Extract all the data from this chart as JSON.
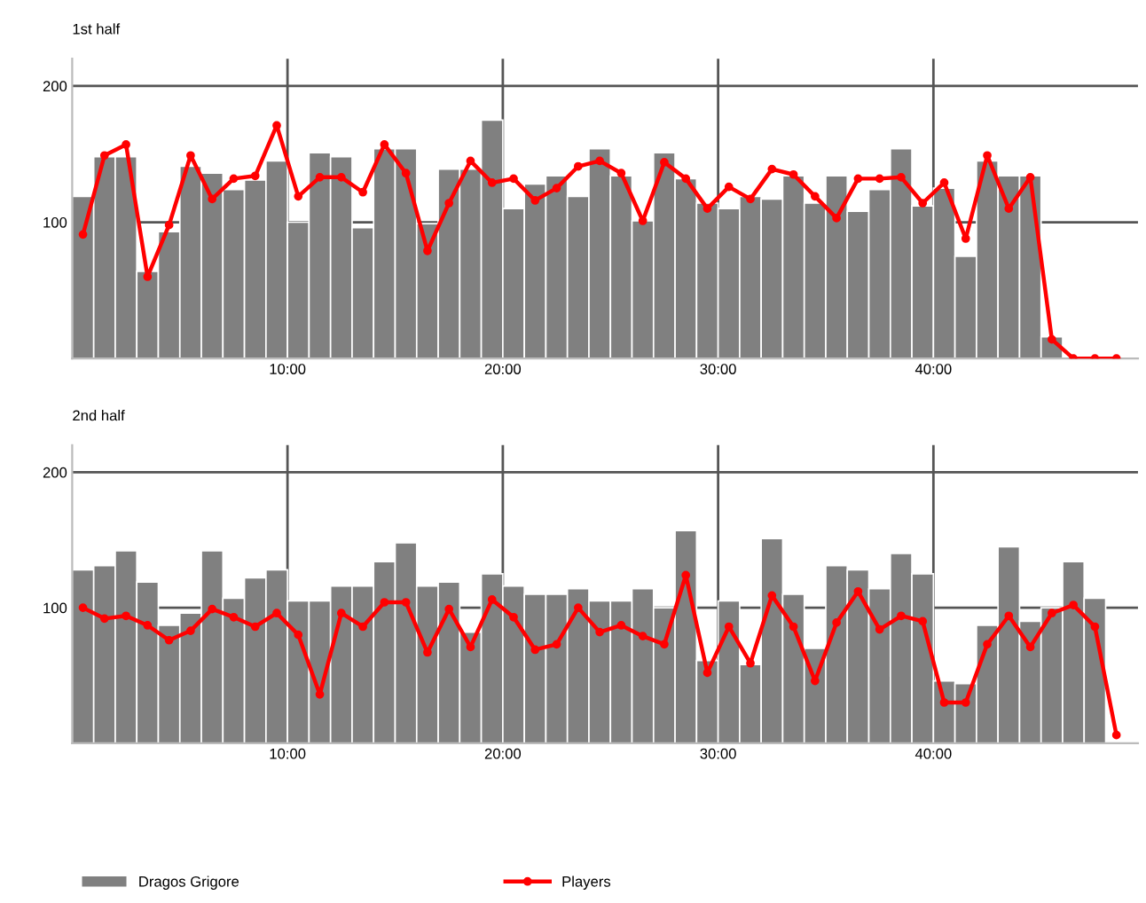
{
  "chart_data": [
    {
      "type": "bar",
      "title": "1st half",
      "x": [
        0.5,
        1.5,
        2.5,
        3.5,
        4.5,
        5.5,
        6.5,
        7.5,
        8.5,
        9.5,
        10.5,
        11.5,
        12.5,
        13.5,
        14.5,
        15.5,
        16.5,
        17.5,
        18.5,
        19.5,
        20.5,
        21.5,
        22.5,
        23.5,
        24.5,
        25.5,
        26.5,
        27.5,
        28.5,
        29.5,
        30.5,
        31.5,
        32.5,
        33.5,
        34.5,
        35.5,
        36.5,
        37.5,
        38.5,
        39.5,
        40.5,
        41.5,
        42.5,
        43.5,
        44.5,
        45.5,
        46.5,
        47.5,
        48.5
      ],
      "series": [
        {
          "name": "Dragos Grigore",
          "color": "#808080",
          "values": [
            119,
            148,
            148,
            64,
            93,
            141,
            136,
            124,
            131,
            145,
            100,
            151,
            148,
            96,
            154,
            154,
            99,
            139,
            139,
            175,
            110,
            128,
            134,
            119,
            154,
            134,
            101,
            151,
            132,
            114,
            110,
            119,
            117,
            134,
            114,
            134,
            108,
            124,
            154,
            112,
            125,
            75,
            145,
            134,
            134,
            16,
            null,
            null,
            null
          ]
        },
        {
          "name": "Players",
          "type": "line",
          "color": "#ff0000",
          "values": [
            91,
            149,
            157,
            60,
            98,
            149,
            117,
            132,
            134,
            171,
            119,
            133,
            133,
            122,
            157,
            136,
            79,
            114,
            145,
            129,
            132,
            116,
            125,
            141,
            145,
            136,
            101,
            144,
            132,
            110,
            126,
            117,
            139,
            135,
            119,
            103,
            132,
            132,
            133,
            114,
            129,
            88,
            149,
            110,
            133,
            14,
            0,
            0,
            0
          ]
        }
      ],
      "xlim": [
        0,
        49.5
      ],
      "xticks": [
        {
          "value": 10,
          "label": "10:00"
        },
        {
          "value": 20,
          "label": "20:00"
        },
        {
          "value": 30,
          "label": "30:00"
        },
        {
          "value": 40,
          "label": "40:00"
        }
      ],
      "ylim": [
        0,
        220
      ],
      "yticks": [
        100,
        200
      ],
      "grid": true,
      "marker": "circle",
      "line_style": "solid",
      "legend": "bottom"
    },
    {
      "type": "bar",
      "title": "2nd half",
      "x": [
        0.5,
        1.5,
        2.5,
        3.5,
        4.5,
        5.5,
        6.5,
        7.5,
        8.5,
        9.5,
        10.5,
        11.5,
        12.5,
        13.5,
        14.5,
        15.5,
        16.5,
        17.5,
        18.5,
        19.5,
        20.5,
        21.5,
        22.5,
        23.5,
        24.5,
        25.5,
        26.5,
        27.5,
        28.5,
        29.5,
        30.5,
        31.5,
        32.5,
        33.5,
        34.5,
        35.5,
        36.5,
        37.5,
        38.5,
        39.5,
        40.5,
        41.5,
        42.5,
        43.5,
        44.5,
        45.5,
        46.5,
        47.5,
        48.5
      ],
      "series": [
        {
          "name": "Dragos Grigore",
          "color": "#808080",
          "values": [
            128,
            131,
            142,
            119,
            87,
            96,
            142,
            107,
            122,
            128,
            105,
            105,
            116,
            116,
            134,
            148,
            116,
            119,
            82,
            125,
            116,
            110,
            110,
            114,
            105,
            105,
            114,
            100,
            157,
            61,
            105,
            58,
            151,
            110,
            70,
            131,
            128,
            114,
            140,
            125,
            46,
            44,
            87,
            145,
            90,
            100,
            134,
            107,
            null
          ]
        },
        {
          "name": "Players",
          "type": "line",
          "color": "#ff0000",
          "values": [
            100,
            92,
            94,
            87,
            76,
            83,
            99,
            93,
            86,
            96,
            80,
            36,
            96,
            86,
            104,
            104,
            67,
            99,
            71,
            106,
            93,
            69,
            73,
            100,
            82,
            87,
            79,
            73,
            124,
            52,
            86,
            59,
            109,
            86,
            46,
            89,
            112,
            84,
            94,
            90,
            30,
            30,
            73,
            94,
            71,
            96,
            102,
            86,
            6
          ]
        }
      ],
      "xlim": [
        0,
        49.5
      ],
      "xticks": [
        {
          "value": 10,
          "label": "10:00"
        },
        {
          "value": 20,
          "label": "20:00"
        },
        {
          "value": 30,
          "label": "30:00"
        },
        {
          "value": 40,
          "label": "40:00"
        }
      ],
      "ylim": [
        0,
        220
      ],
      "yticks": [
        100,
        200
      ],
      "grid": true,
      "marker": "circle",
      "line_style": "solid",
      "legend": "bottom"
    }
  ]
}
